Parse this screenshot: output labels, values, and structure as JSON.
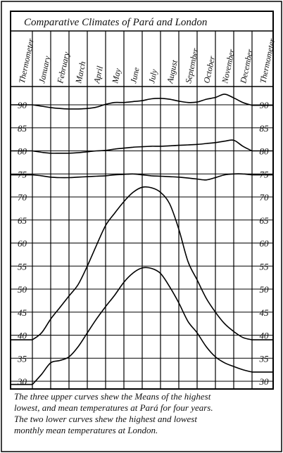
{
  "chart_data": {
    "type": "line",
    "title": "Comparative Climates of Pará and London",
    "axis_label_left": "Thermometer",
    "axis_label_right": "Thermometer",
    "categories": [
      "January",
      "February",
      "March",
      "April",
      "May",
      "June",
      "July",
      "August",
      "September",
      "October",
      "November",
      "December"
    ],
    "yticks": [
      30,
      35,
      40,
      45,
      50,
      55,
      60,
      65,
      70,
      75,
      80,
      85,
      90
    ],
    "ylim": [
      30,
      93
    ],
    "grid": true,
    "series": [
      {
        "x": [
          0,
          0.5,
          1,
          1.5,
          2,
          2.5,
          3,
          3.5,
          4,
          4.5,
          5,
          5.5,
          6,
          6.5,
          7,
          7.5,
          8,
          8.5,
          9,
          9.5,
          10,
          10.5,
          11,
          11.5,
          12
        ],
        "values": [
          90,
          89.7,
          89.4,
          89.2,
          89.1,
          89.1,
          89.2,
          89.5,
          90.1,
          90.5,
          90.5,
          90.7,
          90.9,
          91.3,
          91.4,
          91.2,
          90.8,
          90.5,
          90.6,
          91.2,
          91.6,
          92.3,
          91.5,
          90.5,
          89.9
        ]
      },
      {
        "x": [
          0,
          0.5,
          1,
          1.5,
          2,
          2.5,
          3,
          3.5,
          4,
          4.5,
          5,
          5.5,
          6,
          6.5,
          7,
          7.5,
          8,
          8.5,
          9,
          9.5,
          10,
          10.5,
          11,
          11.5,
          12
        ],
        "values": [
          80,
          79.7,
          79.5,
          79.5,
          79.5,
          79.6,
          79.8,
          80,
          80.1,
          80.4,
          80.6,
          80.8,
          80.9,
          81,
          81,
          81.1,
          81.2,
          81.3,
          81.4,
          81.6,
          81.8,
          82.1,
          82.3,
          81,
          80
        ]
      },
      {
        "x": [
          0,
          0.5,
          1,
          1.5,
          2,
          2.5,
          3,
          3.5,
          4,
          4.5,
          5,
          5.5,
          6,
          6.5,
          7,
          7.5,
          8,
          8.5,
          9,
          9.5,
          10,
          10.5,
          11,
          11.5,
          12
        ],
        "values": [
          74.8,
          74.6,
          74.3,
          74.2,
          74.2,
          74.3,
          74.4,
          74.5,
          74.6,
          74.8,
          74.9,
          75,
          74.8,
          74.6,
          74.5,
          74.4,
          74.3,
          74.1,
          73.9,
          73.7,
          74.2,
          74.8,
          75,
          75,
          74.8
        ]
      },
      {
        "x": [
          0,
          0.5,
          1,
          1.5,
          2,
          2.5,
          3,
          3.5,
          4,
          4.5,
          5,
          5.5,
          6,
          6.5,
          7,
          7.5,
          8,
          8.5,
          9,
          9.5,
          10,
          10.5,
          11,
          11.5,
          12
        ],
        "values": [
          39,
          40.5,
          43.5,
          46,
          48.5,
          51,
          55,
          59.5,
          63.8,
          66.5,
          69,
          71,
          72.1,
          72,
          71,
          68.5,
          63,
          56,
          52,
          48,
          45,
          42.5,
          40.8,
          39.5,
          39
        ]
      },
      {
        "x": [
          0,
          0.5,
          1,
          1.5,
          2,
          2.5,
          3,
          3.5,
          4,
          4.5,
          5,
          5.5,
          6,
          6.5,
          7,
          7.5,
          8,
          8.5,
          9,
          9.5,
          10,
          10.5,
          11,
          11.5,
          12
        ],
        "values": [
          29.3,
          31.5,
          34,
          34.5,
          35.3,
          37.5,
          40.5,
          43.5,
          46.2,
          48.7,
          51.5,
          53.5,
          54.6,
          54.5,
          53.4,
          50.5,
          47,
          43,
          40.5,
          37.5,
          35.3,
          34,
          33.2,
          32.5,
          32
        ]
      }
    ]
  },
  "caption": {
    "line1": "The three upper curves shew the Means of the highest",
    "line2": "lowest, and mean temperatures at Pará for four years.",
    "line3": "The two lower curves shew the highest and lowest",
    "line4": "monthly mean temperatures at London."
  }
}
